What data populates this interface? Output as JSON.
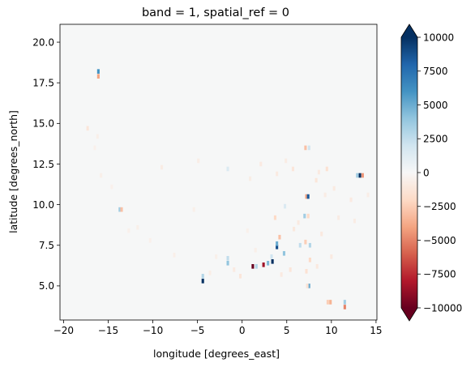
{
  "chart_data": {
    "type": "heatmap",
    "title": "band = 1, spatial_ref = 0",
    "xlabel": "longitude [degrees_east]",
    "ylabel": "latitude [degrees_north]",
    "xlim": [
      -20.4,
      15.1
    ],
    "ylim": [
      2.9,
      21.1
    ],
    "xticks": [
      -20,
      -15,
      -10,
      -5,
      0,
      5,
      10,
      15
    ],
    "yticks": [
      5.0,
      7.5,
      10.0,
      12.5,
      15.0,
      17.5,
      20.0
    ],
    "xtick_labels": [
      "−20",
      "−15",
      "−10",
      "−5",
      "0",
      "5",
      "10",
      "15"
    ],
    "ytick_labels": [
      "5.0",
      "7.5",
      "10.0",
      "12.5",
      "15.0",
      "17.5",
      "20.0"
    ],
    "grid": false,
    "background_color": "#f6f7f7",
    "colorbar": {
      "colormap": "RdBu",
      "vmin": -10000,
      "vmax": 10000,
      "extend": "both",
      "ticks": [
        -10000,
        -7500,
        -5000,
        -2500,
        0,
        2500,
        5000,
        7500,
        10000
      ],
      "tick_labels": [
        "−10000",
        "−7500",
        "−5000",
        "−2500",
        "0",
        "2500",
        "5000",
        "7500",
        "10000"
      ]
    },
    "cells": [
      {
        "lon": -16.1,
        "lat": 18.2,
        "value": 6000
      },
      {
        "lon": -16.1,
        "lat": 17.9,
        "value": -4000
      },
      {
        "lon": -17.3,
        "lat": 14.7,
        "value": -1200
      },
      {
        "lon": -16.2,
        "lat": 14.2,
        "value": -600
      },
      {
        "lon": -15.8,
        "lat": 11.8,
        "value": -600
      },
      {
        "lon": -13.7,
        "lat": 9.7,
        "value": 3500
      },
      {
        "lon": -13.5,
        "lat": 9.7,
        "value": -3000
      },
      {
        "lon": -9.0,
        "lat": 12.3,
        "value": -800
      },
      {
        "lon": -4.9,
        "lat": 12.7,
        "value": -700
      },
      {
        "lon": -1.6,
        "lat": 12.2,
        "value": 1500
      },
      {
        "lon": -5.4,
        "lat": 9.7,
        "value": -600
      },
      {
        "lon": -10.3,
        "lat": 7.8,
        "value": -500
      },
      {
        "lon": -7.6,
        "lat": 6.9,
        "value": -600
      },
      {
        "lon": -4.4,
        "lat": 5.3,
        "value": 10000
      },
      {
        "lon": -4.4,
        "lat": 5.6,
        "value": 3000
      },
      {
        "lon": -1.6,
        "lat": 6.7,
        "value": 2500
      },
      {
        "lon": -1.6,
        "lat": 6.4,
        "value": 4000
      },
      {
        "lon": -0.2,
        "lat": 5.6,
        "value": -1200
      },
      {
        "lon": 1.2,
        "lat": 6.2,
        "value": -10000
      },
      {
        "lon": 1.6,
        "lat": 6.2,
        "value": 3000
      },
      {
        "lon": 2.4,
        "lat": 6.3,
        "value": -8500
      },
      {
        "lon": 2.9,
        "lat": 6.4,
        "value": 4500
      },
      {
        "lon": 3.4,
        "lat": 6.5,
        "value": 10000
      },
      {
        "lon": 3.3,
        "lat": 6.8,
        "value": 2000
      },
      {
        "lon": 3.9,
        "lat": 7.4,
        "value": 9000
      },
      {
        "lon": 3.9,
        "lat": 7.6,
        "value": 5000
      },
      {
        "lon": 4.2,
        "lat": 8.0,
        "value": -3000
      },
      {
        "lon": 4.7,
        "lat": 7.0,
        "value": 4000
      },
      {
        "lon": 3.7,
        "lat": 9.2,
        "value": -2000
      },
      {
        "lon": 4.8,
        "lat": 9.9,
        "value": 1500
      },
      {
        "lon": 6.5,
        "lat": 7.5,
        "value": 2500
      },
      {
        "lon": 7.1,
        "lat": 7.7,
        "value": -2500
      },
      {
        "lon": 7.6,
        "lat": 7.5,
        "value": 3000
      },
      {
        "lon": 7.6,
        "lat": 6.6,
        "value": -2000
      },
      {
        "lon": 7.2,
        "lat": 5.9,
        "value": -1500
      },
      {
        "lon": 7.5,
        "lat": 5.0,
        "value": 5000
      },
      {
        "lon": 7.3,
        "lat": 5.0,
        "value": -1500
      },
      {
        "lon": 7.2,
        "lat": 10.5,
        "value": -4000
      },
      {
        "lon": 7.4,
        "lat": 10.5,
        "value": 8500
      },
      {
        "lon": 7.1,
        "lat": 13.5,
        "value": -3000
      },
      {
        "lon": 7.5,
        "lat": 13.5,
        "value": 2000
      },
      {
        "lon": 7.0,
        "lat": 9.3,
        "value": 3500
      },
      {
        "lon": 7.4,
        "lat": 9.3,
        "value": -2000
      },
      {
        "lon": 8.3,
        "lat": 11.5,
        "value": -1200
      },
      {
        "lon": 8.6,
        "lat": 12.0,
        "value": -900
      },
      {
        "lon": 9.5,
        "lat": 12.2,
        "value": -1500
      },
      {
        "lon": 10.3,
        "lat": 11.0,
        "value": -900
      },
      {
        "lon": 9.3,
        "lat": 10.6,
        "value": -800
      },
      {
        "lon": 10.8,
        "lat": 9.2,
        "value": -800
      },
      {
        "lon": 13.2,
        "lat": 11.8,
        "value": 10000
      },
      {
        "lon": 12.9,
        "lat": 11.8,
        "value": 3500
      },
      {
        "lon": 13.5,
        "lat": 11.8,
        "value": -4500
      },
      {
        "lon": 11.5,
        "lat": 4.0,
        "value": 3500
      },
      {
        "lon": 11.5,
        "lat": 3.7,
        "value": -5000
      },
      {
        "lon": 9.6,
        "lat": 4.0,
        "value": -2500
      },
      {
        "lon": 9.9,
        "lat": 4.0,
        "value": -3500
      },
      {
        "lon": 5.7,
        "lat": 12.2,
        "value": -1200
      },
      {
        "lon": 4.9,
        "lat": 12.7,
        "value": -800
      },
      {
        "lon": 3.9,
        "lat": 11.9,
        "value": -900
      },
      {
        "lon": 2.1,
        "lat": 12.5,
        "value": -900
      },
      {
        "lon": 0.9,
        "lat": 11.6,
        "value": -700
      },
      {
        "lon": 5.8,
        "lat": 8.5,
        "value": -1100
      },
      {
        "lon": 6.3,
        "lat": 8.9,
        "value": -900
      },
      {
        "lon": 8.9,
        "lat": 8.2,
        "value": -1000
      },
      {
        "lon": 12.2,
        "lat": 10.3,
        "value": -900
      },
      {
        "lon": 12.6,
        "lat": 9.0,
        "value": -800
      },
      {
        "lon": 14.1,
        "lat": 10.6,
        "value": -700
      },
      {
        "lon": 10.0,
        "lat": 6.8,
        "value": -900
      },
      {
        "lon": 8.4,
        "lat": 6.2,
        "value": -1000
      },
      {
        "lon": 5.4,
        "lat": 6.0,
        "value": -1200
      },
      {
        "lon": 4.4,
        "lat": 5.7,
        "value": -900
      },
      {
        "lon": -0.9,
        "lat": 6.0,
        "value": -900
      },
      {
        "lon": -2.9,
        "lat": 6.8,
        "value": -600
      },
      {
        "lon": -3.6,
        "lat": 5.8,
        "value": -700
      },
      {
        "lon": 1.5,
        "lat": 7.2,
        "value": -600
      },
      {
        "lon": 0.6,
        "lat": 8.4,
        "value": -500
      },
      {
        "lon": -11.7,
        "lat": 8.6,
        "value": -600
      },
      {
        "lon": -12.7,
        "lat": 8.4,
        "value": -500
      },
      {
        "lon": -14.6,
        "lat": 11.1,
        "value": -500
      },
      {
        "lon": -16.5,
        "lat": 13.5,
        "value": -500
      }
    ]
  }
}
